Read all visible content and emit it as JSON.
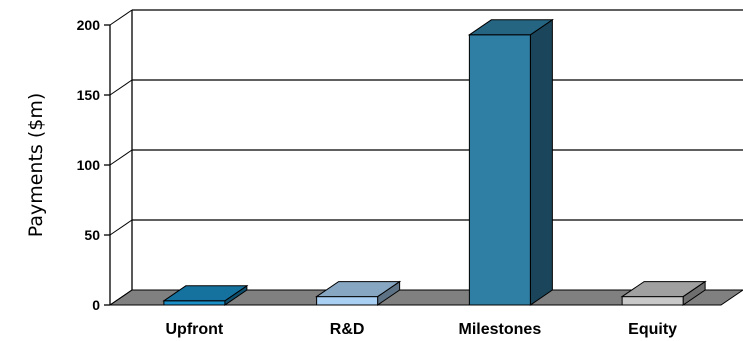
{
  "chart_data": {
    "type": "bar",
    "title": "",
    "xlabel": "",
    "ylabel": "Payments ($m)",
    "categories": [
      "Upfront",
      "R&D",
      "Milestones",
      "Equity"
    ],
    "values": [
      3,
      6,
      193,
      6
    ],
    "ylim": [
      0,
      200
    ],
    "yticks": [
      0,
      50,
      100,
      150,
      200
    ],
    "grid": true,
    "three_d": true,
    "colors": {
      "bars": [
        "#1a8fc7",
        "#a9cff2",
        "#2f7ea3",
        "#c8c8c8"
      ],
      "floor": "#808080",
      "gridline": "#000000",
      "background": "#ffffff"
    }
  }
}
